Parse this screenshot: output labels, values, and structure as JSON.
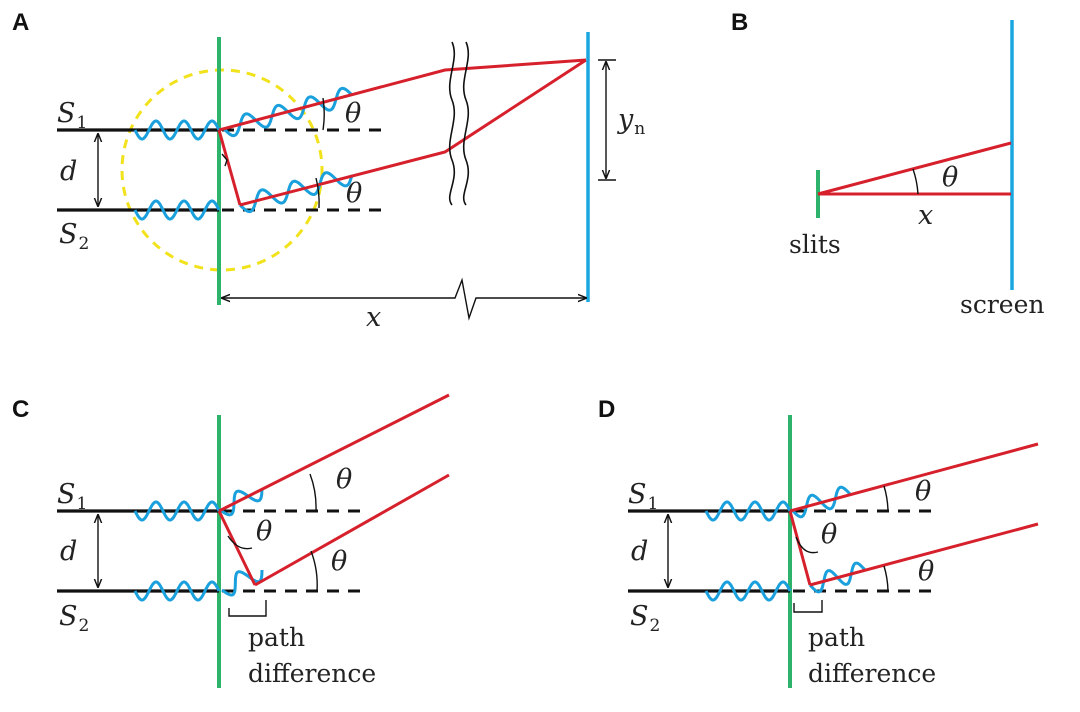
{
  "panels": {
    "a": {
      "label": "A",
      "source1": "S",
      "source1_sub": "1",
      "source2": "S",
      "source2_sub": "2",
      "separation": "d",
      "angle_top": "θ",
      "angle_bottom": "θ",
      "fringe_height": "y",
      "fringe_height_sub": "n",
      "distance": "x"
    },
    "b": {
      "label": "B",
      "angle": "θ",
      "distance": "x",
      "slits": "slits",
      "screen": "screen"
    },
    "c": {
      "label": "C",
      "source1": "S",
      "source1_sub": "1",
      "source2": "S",
      "source2_sub": "2",
      "separation": "d",
      "angle_top": "θ",
      "angle_inner": "θ",
      "angle_bottom": "θ",
      "path_line1": "path",
      "path_line2": "difference"
    },
    "d": {
      "label": "D",
      "source1": "S",
      "source1_sub": "1",
      "source2": "S",
      "source2_sub": "2",
      "separation": "d",
      "angle_top": "θ",
      "angle_inner": "θ",
      "angle_bottom": "θ",
      "path_line1": "path",
      "path_line2": "difference"
    }
  },
  "colors": {
    "barrier": "#2db36b",
    "screen": "#1aa7e0",
    "ray": "#d6202c",
    "wave": "#1aa0dc",
    "highlight_circle": "#f1e21c"
  }
}
